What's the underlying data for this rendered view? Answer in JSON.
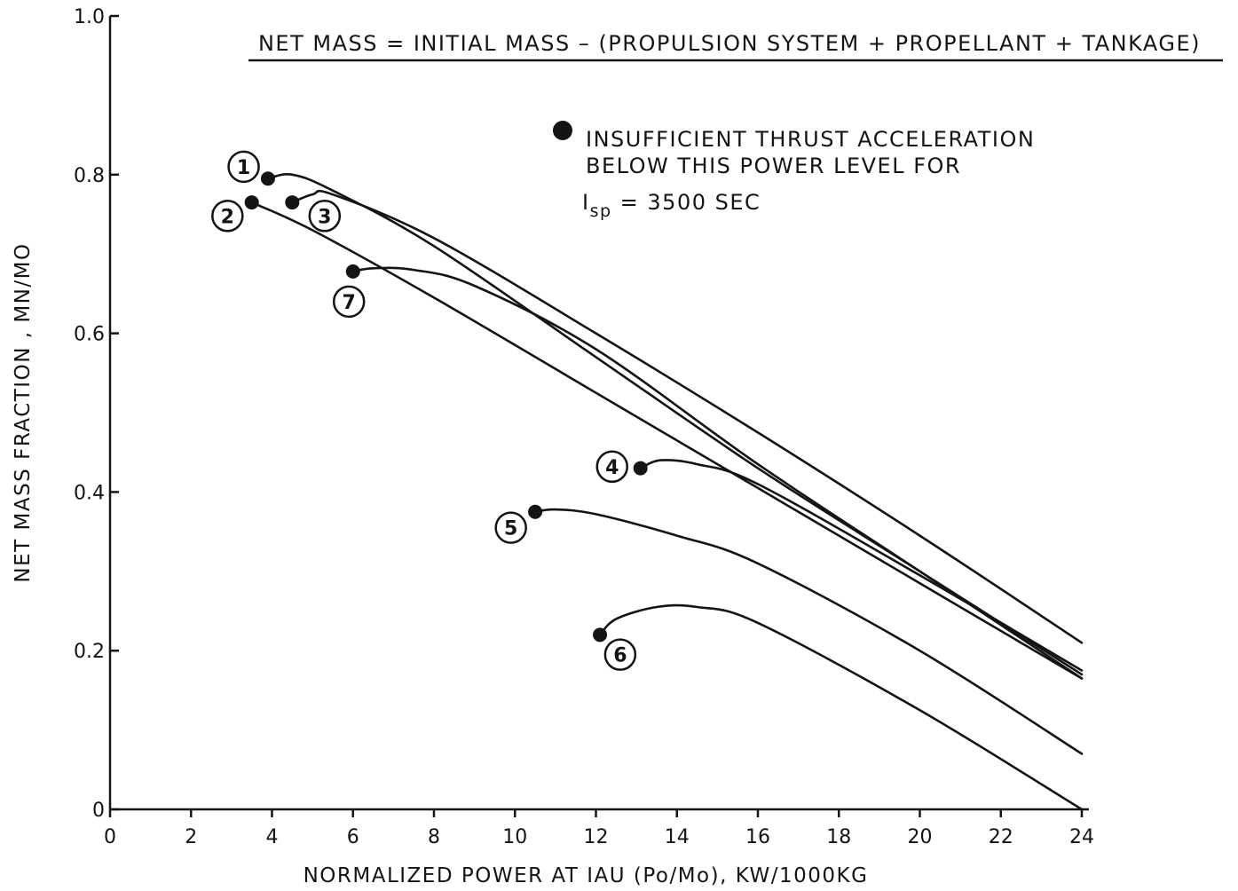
{
  "chart_data": {
    "type": "line",
    "xlabel": "NORMALIZED POWER AT IAU (Po/Mo), KW/1000KG",
    "ylabel": "NET MASS FRACTION , MN/MO",
    "xlim": [
      0,
      24
    ],
    "ylim": [
      0,
      1.0
    ],
    "x_ticks": [
      0,
      2,
      4,
      6,
      8,
      10,
      12,
      14,
      16,
      18,
      20,
      22,
      24
    ],
    "x_tick_labels": [
      "0",
      "2",
      "4",
      "6",
      "8",
      "10",
      "12",
      "14",
      "16",
      "18",
      "20",
      "22",
      "24"
    ],
    "y_ticks": [
      0,
      0.2,
      0.4,
      0.6,
      0.8,
      1.0
    ],
    "y_tick_labels": [
      "0",
      "0.2",
      "0.4",
      "0.6",
      "0.8",
      "1.0"
    ],
    "grid": false,
    "annotation": "NET MASS = INITIAL MASS – (PROPULSION SYSTEM + PROPELLANT + TANKAGE)",
    "legend": {
      "marker": "filled-circle",
      "text_lines": [
        "INSUFFICIENT THRUST ACCELERATION",
        "BELOW THIS POWER LEVEL FOR"
      ],
      "isp_main": "I",
      "isp_sub": "sp",
      "isp_value": " = 3500 SEC"
    },
    "series": [
      {
        "name": "1",
        "x": [
          3.9,
          4.5,
          5.5,
          8,
          12,
          16,
          20,
          24
        ],
        "y": [
          0.795,
          0.8,
          0.78,
          0.71,
          0.57,
          0.43,
          0.3,
          0.17
        ]
      },
      {
        "name": "2",
        "x": [
          3.5,
          5,
          8,
          12,
          16,
          20,
          24
        ],
        "y": [
          0.765,
          0.73,
          0.645,
          0.525,
          0.405,
          0.285,
          0.165
        ]
      },
      {
        "name": "3",
        "x": [
          4.5,
          5,
          5.5,
          8,
          12,
          16,
          20,
          24
        ],
        "y": [
          0.765,
          0.775,
          0.775,
          0.72,
          0.6,
          0.475,
          0.345,
          0.21
        ]
      },
      {
        "name": "4",
        "x": [
          13.1,
          13.6,
          14.5,
          16,
          20,
          24
        ],
        "y": [
          0.43,
          0.44,
          0.435,
          0.41,
          0.295,
          0.175
        ]
      },
      {
        "name": "5",
        "x": [
          10.5,
          11,
          12,
          14,
          16,
          20,
          24
        ],
        "y": [
          0.375,
          0.378,
          0.372,
          0.345,
          0.31,
          0.2,
          0.07
        ]
      },
      {
        "name": "6",
        "x": [
          12.1,
          12.5,
          13.5,
          14.5,
          16,
          20,
          24
        ],
        "y": [
          0.22,
          0.24,
          0.255,
          0.255,
          0.235,
          0.125,
          0.0
        ]
      },
      {
        "name": "7",
        "x": [
          6.0,
          6.5,
          7.5,
          9,
          12,
          16,
          20,
          24
        ],
        "y": [
          0.678,
          0.682,
          0.68,
          0.66,
          0.58,
          0.435,
          0.3,
          0.165
        ]
      }
    ],
    "labels": [
      {
        "text": "1",
        "x": 3.3,
        "y": 0.81
      },
      {
        "text": "2",
        "x": 2.9,
        "y": 0.748
      },
      {
        "text": "3",
        "x": 5.3,
        "y": 0.748
      },
      {
        "text": "4",
        "x": 12.4,
        "y": 0.432
      },
      {
        "text": "5",
        "x": 9.9,
        "y": 0.355
      },
      {
        "text": "6",
        "x": 12.6,
        "y": 0.195
      },
      {
        "text": "7",
        "x": 5.9,
        "y": 0.64
      }
    ]
  }
}
